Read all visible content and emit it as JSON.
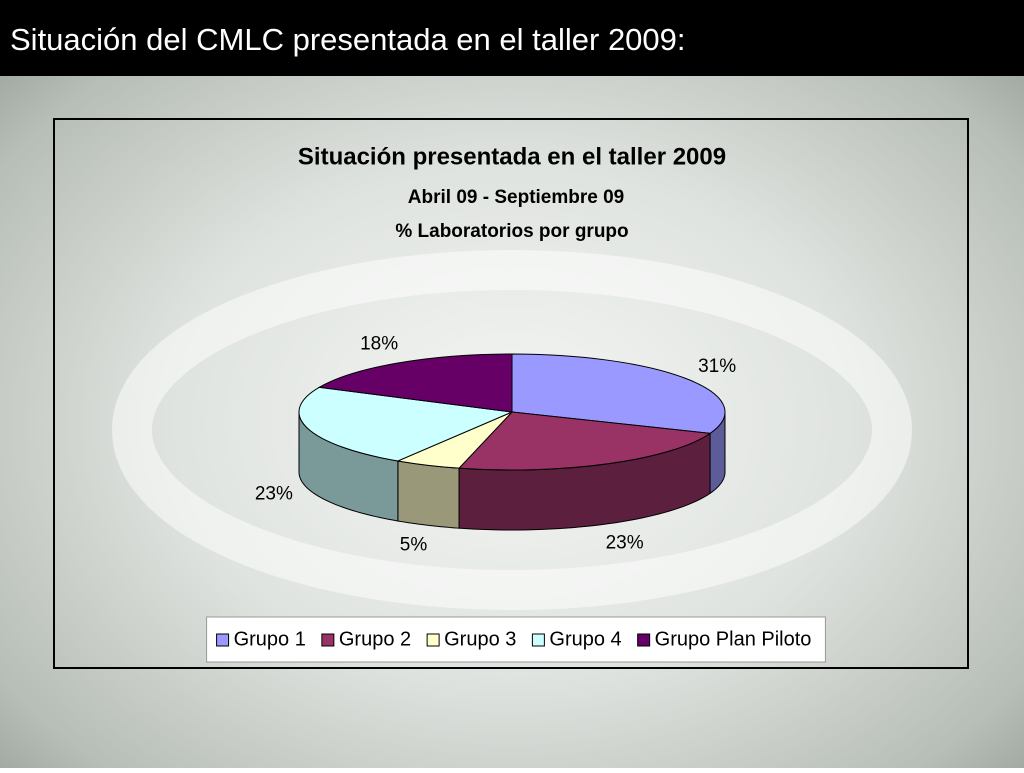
{
  "slide_title": "Situación del CMLC presentada en el taller 2009:",
  "chart_data": {
    "type": "pie3d",
    "title": "Situación presentada en el taller 2009",
    "subtitles": [
      "Abril 09 - Septiembre 09",
      "% Laboratorios por grupo"
    ],
    "categories": [
      "Grupo 1",
      "Grupo 2",
      "Grupo 3",
      "Grupo 4",
      "Grupo Plan Piloto"
    ],
    "values": [
      31,
      23,
      5,
      23,
      18
    ],
    "value_labels": [
      "31%",
      "23%",
      "5%",
      "23%",
      "18%"
    ],
    "colors": [
      "#9999ff",
      "#993366",
      "#ffffcc",
      "#ccffff",
      "#660066"
    ],
    "legend": "bottom"
  }
}
